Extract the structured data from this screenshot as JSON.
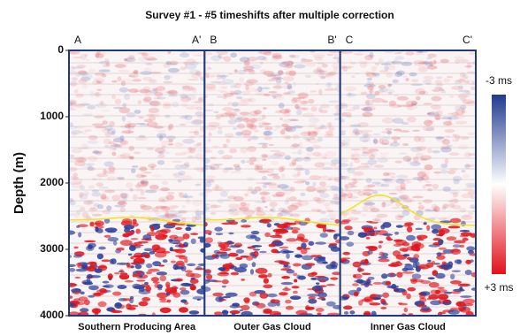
{
  "title": "Survey #1 - #5 timeshifts after multiple correction",
  "y_axis": {
    "label": "Depth (m)",
    "lim": [
      0,
      4000
    ],
    "ticks": [
      0,
      1000,
      2000,
      3000,
      4000
    ]
  },
  "panels": [
    {
      "left": "A",
      "right": "A'",
      "label": "Southern Producing Area"
    },
    {
      "left": "B",
      "right": "B'",
      "label": "Outer Gas Cloud"
    },
    {
      "left": "C",
      "right": "C'",
      "label": "Inner Gas Cloud"
    }
  ],
  "colorbar": {
    "top": "-3 ms",
    "bottom": "+3 ms"
  }
}
